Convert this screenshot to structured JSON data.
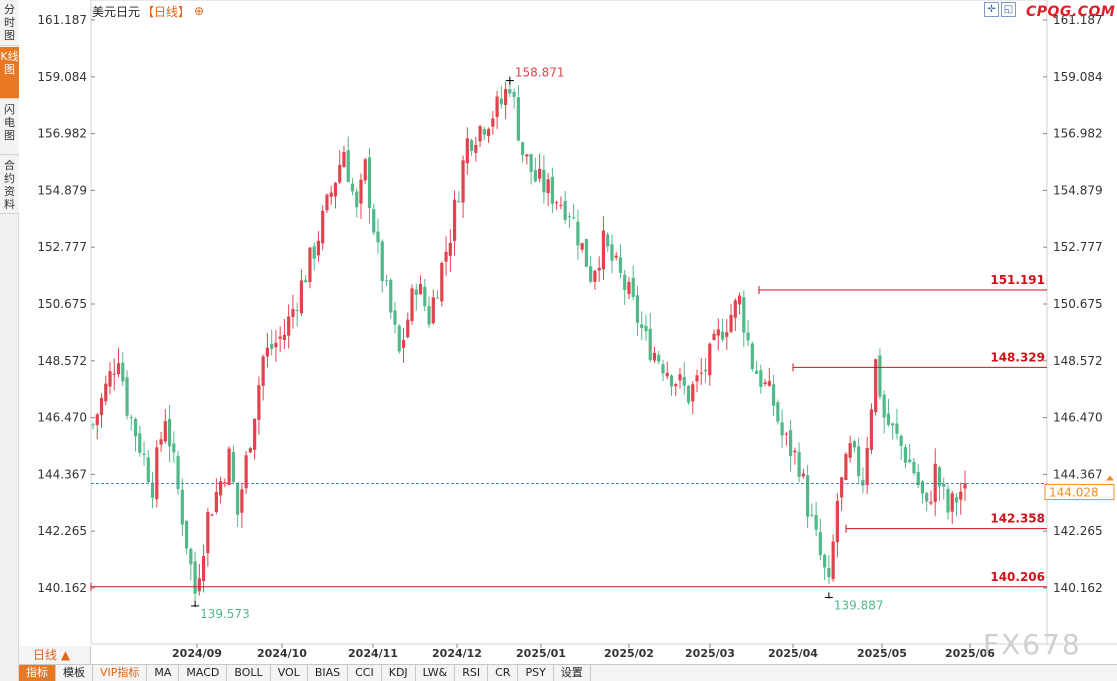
{
  "side_tabs": [
    "分时图",
    "K线图",
    "闪电图",
    "合约资料"
  ],
  "side_active": "K线图",
  "title": {
    "symbol": "美元日元",
    "period": "【日线】",
    "add_icon": "plus-circle-icon"
  },
  "tool_icons": [
    "crosshair-icon",
    "restore-icon"
  ],
  "brand": "CPQG.COM",
  "watermark": "FX678",
  "period_selector": "日线 ▲",
  "bottom_tabs": [
    "指标",
    "模板",
    "VIP指标",
    "MA",
    "MACD",
    "BOLL",
    "VOL",
    "BIAS",
    "CCI",
    "KDJ",
    "LW&",
    "RSI",
    "CR",
    "PSY",
    "设置"
  ],
  "bottom_active": "指标",
  "colors": {
    "up": "#e0434d",
    "down": "#52b889",
    "hline": "#d0101a",
    "current": "#e8902a",
    "grid": "#eeeeee"
  },
  "chart_data": {
    "type": "candlestick",
    "y_ticks": [
      "161.187",
      "159.084",
      "156.982",
      "154.879",
      "152.777",
      "150.675",
      "148.572",
      "146.470",
      "144.367",
      "142.265",
      "140.162"
    ],
    "ylim": [
      140.162,
      161.187
    ],
    "x_labels": [
      "2024/09",
      "2024/10",
      "2024/11",
      "2024/12",
      "2025/01",
      "2025/02",
      "2025/03",
      "2025/04",
      "2025/05",
      "2025/06"
    ],
    "current_price": "144.028",
    "high_mark": "158.871",
    "low_marks": [
      "139.573",
      "139.887"
    ],
    "hlines": [
      "151.191",
      "148.329",
      "142.358",
      "140.206"
    ]
  }
}
